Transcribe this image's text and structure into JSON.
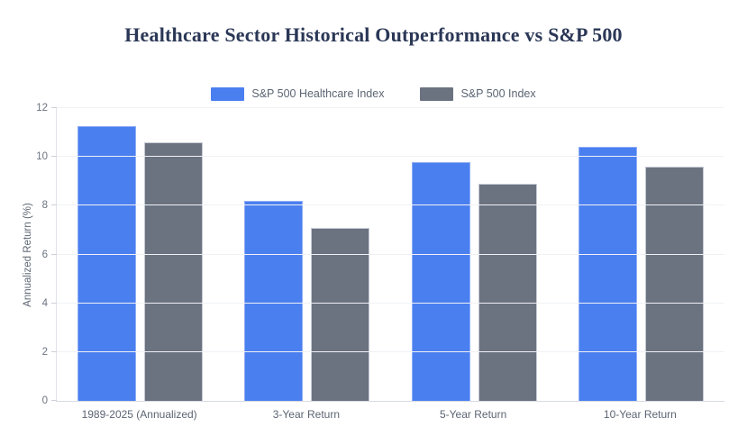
{
  "page": {
    "background": "#ffffff"
  },
  "title": {
    "color": "#2a3756"
  },
  "axis": {
    "grid_color": "#f0f1f5",
    "axis_line_color": "#dcdee5",
    "tick_label_color": "#6b7380",
    "category_label_color": "#5c6573"
  },
  "chart_data": {
    "type": "bar",
    "title": "Healthcare Sector Historical Outperformance vs S&P 500",
    "categories": [
      "1989-2025 (Annualized)",
      "3-Year Return",
      "5-Year Return",
      "10-Year Return"
    ],
    "series": [
      {
        "name": "S&P 500 Healthcare Index",
        "color": "#4a7ff0",
        "border_color": "#8fadf5",
        "values": [
          11.25,
          8.2,
          9.8,
          10.4
        ]
      },
      {
        "name": "S&P 500 Index",
        "color": "#6b7280",
        "border_color": "#c7cbd5",
        "values": [
          10.6,
          7.1,
          8.9,
          9.6
        ]
      }
    ],
    "xlabel": "",
    "ylabel": "Annualized Return (%)",
    "ylim": [
      0,
      12
    ],
    "yticks": [
      0,
      2,
      4,
      6,
      8,
      10,
      12
    ],
    "grid": "horizontal",
    "legend_position": "top-center"
  }
}
